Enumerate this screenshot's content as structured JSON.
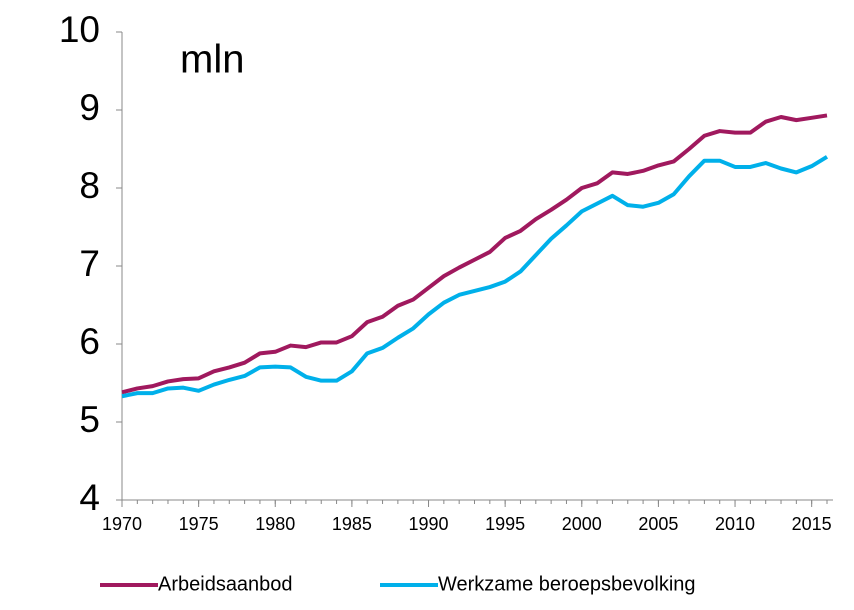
{
  "chart_data": {
    "type": "line",
    "annotation": "mln",
    "x": [
      1970,
      1971,
      1972,
      1973,
      1974,
      1975,
      1976,
      1977,
      1978,
      1979,
      1980,
      1981,
      1982,
      1983,
      1984,
      1985,
      1986,
      1987,
      1988,
      1989,
      1990,
      1991,
      1992,
      1993,
      1994,
      1995,
      1996,
      1997,
      1998,
      1999,
      2000,
      2001,
      2002,
      2003,
      2004,
      2005,
      2006,
      2007,
      2008,
      2009,
      2010,
      2011,
      2012,
      2013,
      2014,
      2015,
      2016
    ],
    "series": [
      {
        "name": "Arbeidsaanbod",
        "color": "#a0195e",
        "values": [
          5.38,
          5.43,
          5.46,
          5.52,
          5.55,
          5.56,
          5.65,
          5.7,
          5.76,
          5.88,
          5.9,
          5.98,
          5.96,
          6.02,
          6.02,
          6.1,
          6.28,
          6.35,
          6.49,
          6.57,
          6.72,
          6.87,
          6.98,
          7.08,
          7.18,
          7.36,
          7.45,
          7.6,
          7.72,
          7.85,
          8.0,
          8.06,
          8.2,
          8.18,
          8.22,
          8.29,
          8.34,
          8.5,
          8.67,
          8.73,
          8.71,
          8.71,
          8.85,
          8.91,
          8.87,
          8.9,
          8.93
        ]
      },
      {
        "name": "Werkzame beroepsbevolking",
        "color": "#00b0ea",
        "values": [
          5.33,
          5.37,
          5.37,
          5.43,
          5.44,
          5.4,
          5.48,
          5.54,
          5.59,
          5.7,
          5.71,
          5.7,
          5.58,
          5.53,
          5.53,
          5.65,
          5.88,
          5.95,
          6.08,
          6.2,
          6.38,
          6.53,
          6.63,
          6.68,
          6.73,
          6.8,
          6.93,
          7.14,
          7.35,
          7.52,
          7.7,
          7.8,
          7.9,
          7.78,
          7.76,
          7.81,
          7.92,
          8.15,
          8.35,
          8.35,
          8.27,
          8.27,
          8.32,
          8.25,
          8.2,
          8.28,
          8.4
        ]
      }
    ],
    "xlim": [
      1970,
      2016
    ],
    "xticks": [
      1970,
      1975,
      1980,
      1985,
      1990,
      1995,
      2000,
      2005,
      2010,
      2015
    ],
    "ylim": [
      4,
      10
    ],
    "yticks": [
      4,
      5,
      6,
      7,
      8,
      9,
      10
    ],
    "grid": false,
    "legend": "bottom"
  }
}
